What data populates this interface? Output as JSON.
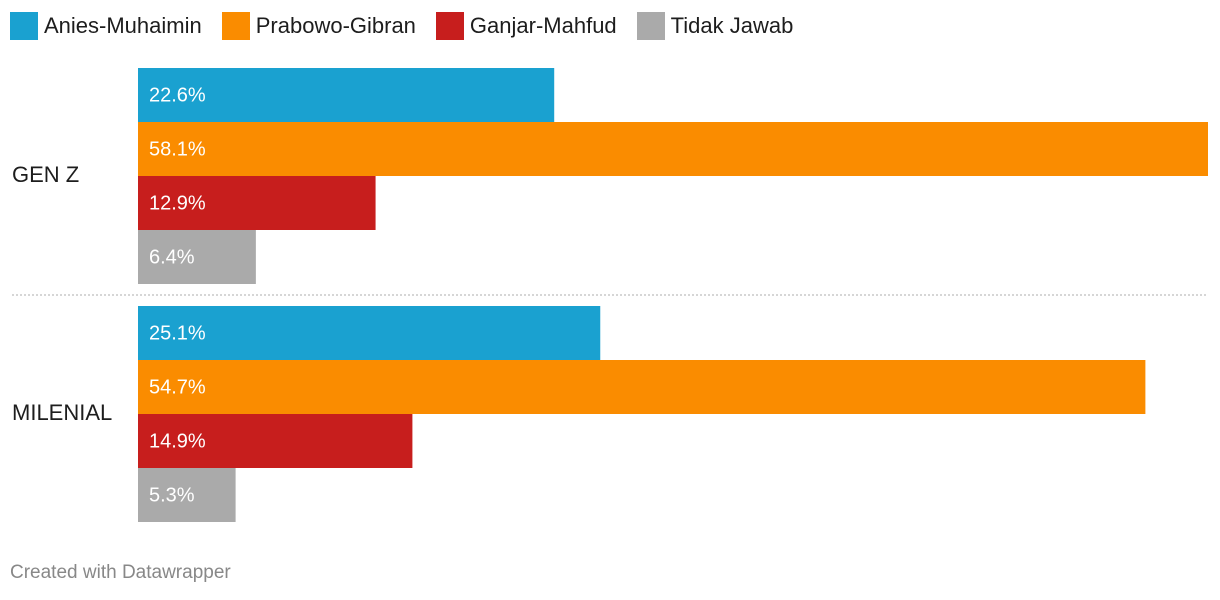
{
  "chart_data": {
    "type": "bar",
    "orientation": "horizontal",
    "grouped": true,
    "categories": [
      "GEN Z",
      "MILENIAL"
    ],
    "series": [
      {
        "name": "Anies-Muhaimin",
        "color": "#1aa1d0",
        "values": [
          22.6,
          25.1
        ],
        "labels": [
          "22.6%",
          "25.1%"
        ]
      },
      {
        "name": "Prabowo-Gibran",
        "color": "#fa8c00",
        "values": [
          58.1,
          54.7
        ],
        "labels": [
          "58.1%",
          "54.7%"
        ]
      },
      {
        "name": "Ganjar-Mahfud",
        "color": "#c71e1d",
        "values": [
          12.9,
          14.9
        ],
        "labels": [
          "12.9%",
          "14.9%"
        ]
      },
      {
        "name": "Tidak Jawab",
        "color": "#aaaaaa",
        "values": [
          6.4,
          5.3
        ],
        "labels": [
          "6.4%",
          "5.3%"
        ]
      }
    ],
    "xlim": [
      0,
      58.1
    ],
    "legend_position": "top-left",
    "grid": false
  },
  "footer": "Created with Datawrapper"
}
